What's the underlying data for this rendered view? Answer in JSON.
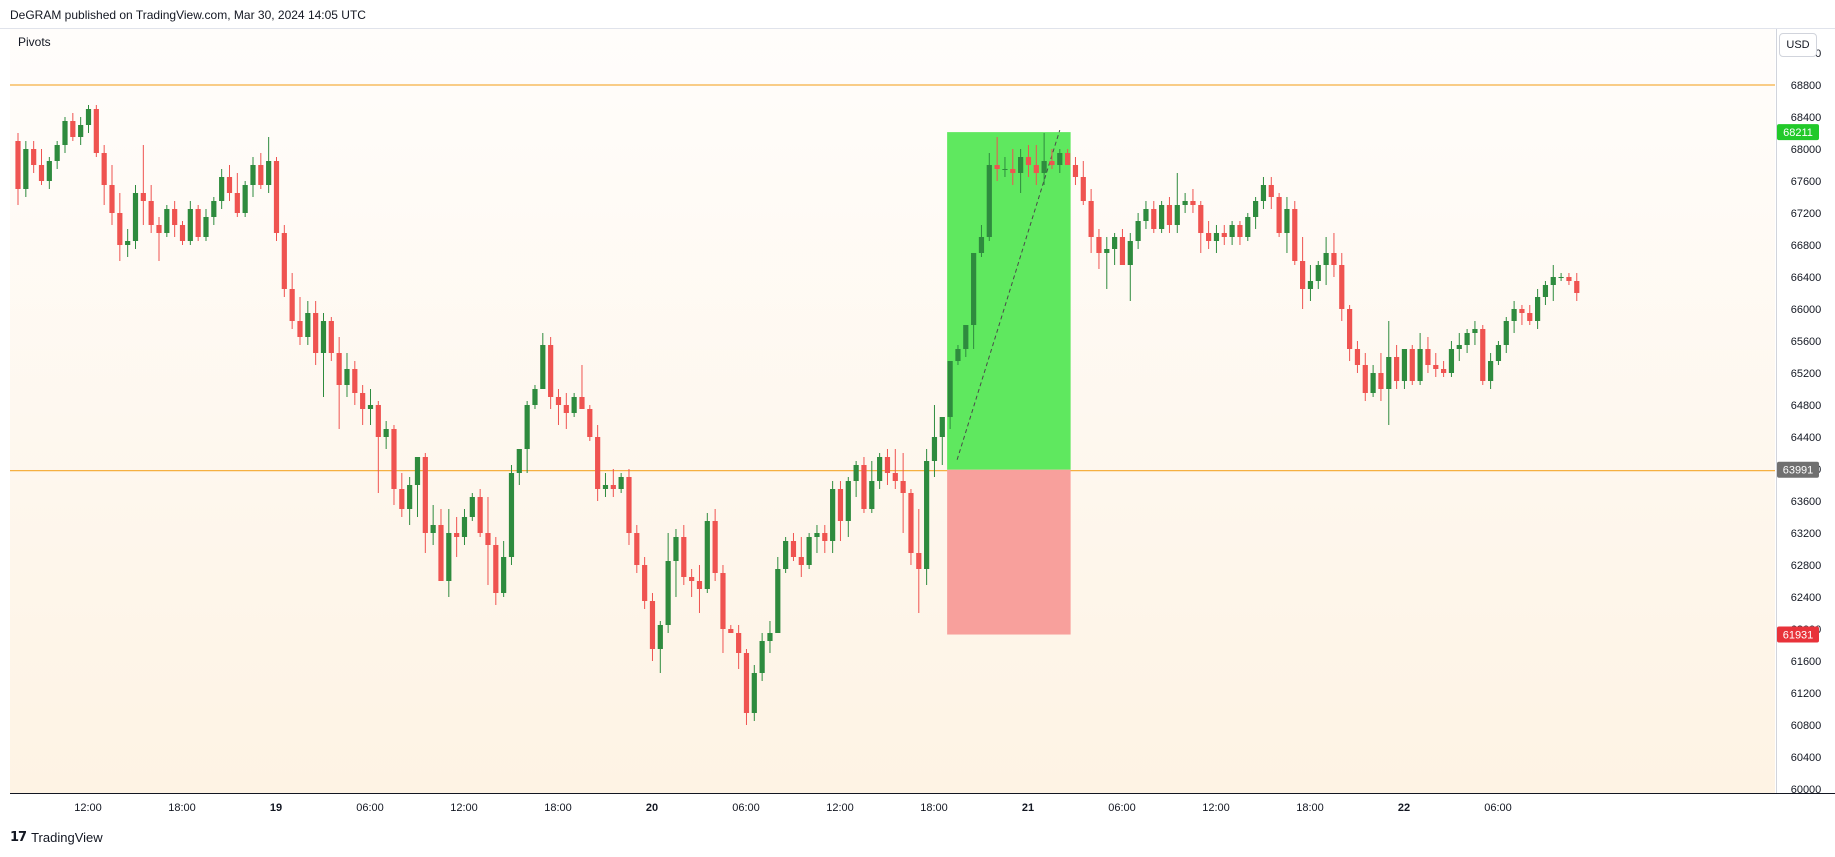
{
  "header": {
    "publish_note": "DeGRAM published on TradingView.com, Mar 30, 2024 14:05 UTC"
  },
  "indicator_label": "Pivots",
  "currency_button": "USD",
  "footer": {
    "brand_logo": "17",
    "brand_name": "TradingView"
  },
  "colors": {
    "up": "#2e8b3e",
    "down": "#ef5350",
    "pivot_line": "#f5b041",
    "profit_zone": "#5fe85f",
    "loss_zone": "#f8a09c",
    "target_tag": "#22c92a",
    "entry_tag": "#707070",
    "stop_tag": "#e8323a"
  },
  "chart_data": {
    "type": "candlestick",
    "symbol_currency": "USD",
    "y_axis": {
      "range": [
        59950,
        69500
      ],
      "ticks": [
        60000,
        60400,
        60800,
        61200,
        61600,
        62000,
        62400,
        62800,
        63200,
        63600,
        64000,
        64400,
        64800,
        65200,
        65600,
        66000,
        66400,
        66800,
        67200,
        67600,
        68000,
        68400,
        68800,
        69200
      ]
    },
    "x_axis": {
      "ticks": [
        {
          "label": "12:00",
          "x": 74,
          "bold": false
        },
        {
          "label": "18:00",
          "x": 168,
          "bold": false
        },
        {
          "label": "19",
          "x": 262,
          "bold": true
        },
        {
          "label": "06:00",
          "x": 356,
          "bold": false
        },
        {
          "label": "12:00",
          "x": 450,
          "bold": false
        },
        {
          "label": "18:00",
          "x": 544,
          "bold": false
        },
        {
          "label": "20",
          "x": 638,
          "bold": true
        },
        {
          "label": "06:00",
          "x": 732,
          "bold": false
        },
        {
          "label": "12:00",
          "x": 826,
          "bold": false
        },
        {
          "label": "18:00",
          "x": 920,
          "bold": false
        },
        {
          "label": "21",
          "x": 1014,
          "bold": true
        },
        {
          "label": "06:00",
          "x": 1108,
          "bold": false
        },
        {
          "label": "12:00",
          "x": 1202,
          "bold": false
        },
        {
          "label": "18:00",
          "x": 1296,
          "bold": false
        },
        {
          "label": "22",
          "x": 1390,
          "bold": true
        },
        {
          "label": "06:00",
          "x": 1484,
          "bold": false
        }
      ]
    },
    "horizontal_levels": [
      {
        "name": "upper-pivot",
        "price": 68800
      },
      {
        "name": "lower-pivot",
        "price": 63980
      }
    ],
    "position": {
      "type": "long",
      "entry": 63991,
      "target": 68211,
      "stop": 61931,
      "target_label": "68211",
      "entry_label": "63991",
      "stop_label": "61931"
    },
    "candles": [
      [
        68100,
        68200,
        67300,
        67500
      ],
      [
        67500,
        68100,
        67400,
        68000
      ],
      [
        68000,
        68100,
        67700,
        67800
      ],
      [
        67800,
        68000,
        67550,
        67600
      ],
      [
        67600,
        67900,
        67500,
        67850
      ],
      [
        67850,
        68100,
        67750,
        68050
      ],
      [
        68050,
        68400,
        67950,
        68350
      ],
      [
        68350,
        68450,
        68100,
        68150
      ],
      [
        68150,
        68400,
        68050,
        68300
      ],
      [
        68300,
        68550,
        68200,
        68500
      ],
      [
        68500,
        68550,
        67900,
        67950
      ],
      [
        67950,
        68050,
        67300,
        67550
      ],
      [
        67550,
        67800,
        67050,
        67200
      ],
      [
        67200,
        67450,
        66600,
        66800
      ],
      [
        66800,
        67000,
        66650,
        66850
      ],
      [
        66850,
        67550,
        66750,
        67450
      ],
      [
        67450,
        68050,
        67050,
        67350
      ],
      [
        67350,
        67550,
        66950,
        67050
      ],
      [
        67050,
        67150,
        66600,
        66950
      ],
      [
        66950,
        67300,
        66900,
        67250
      ],
      [
        67250,
        67350,
        66900,
        67050
      ],
      [
        67050,
        67100,
        66800,
        66850
      ],
      [
        66850,
        67350,
        66800,
        67250
      ],
      [
        67250,
        67300,
        66850,
        66900
      ],
      [
        66900,
        67250,
        66850,
        67150
      ],
      [
        67150,
        67400,
        67050,
        67350
      ],
      [
        67350,
        67750,
        67250,
        67650
      ],
      [
        67650,
        67800,
        67350,
        67450
      ],
      [
        67450,
        67700,
        67150,
        67200
      ],
      [
        67200,
        67600,
        67150,
        67550
      ],
      [
        67550,
        67900,
        67400,
        67800
      ],
      [
        67800,
        67950,
        67500,
        67550
      ],
      [
        67550,
        68150,
        67450,
        67850
      ],
      [
        67850,
        67900,
        66850,
        66950
      ],
      [
        66950,
        67050,
        66150,
        66250
      ],
      [
        66250,
        66450,
        65750,
        65850
      ],
      [
        65850,
        66150,
        65550,
        65650
      ],
      [
        65650,
        66100,
        65550,
        65950
      ],
      [
        65950,
        66100,
        65300,
        65450
      ],
      [
        65450,
        65950,
        64900,
        65850
      ],
      [
        65850,
        65900,
        65350,
        65450
      ],
      [
        65450,
        65650,
        64500,
        65050
      ],
      [
        65050,
        65450,
        64900,
        65250
      ],
      [
        65250,
        65350,
        64800,
        64950
      ],
      [
        64950,
        65050,
        64550,
        64750
      ],
      [
        64750,
        65000,
        64550,
        64800
      ],
      [
        64800,
        64850,
        63700,
        64400
      ],
      [
        64400,
        64600,
        64250,
        64500
      ],
      [
        64500,
        64550,
        63550,
        63750
      ],
      [
        63750,
        63950,
        63400,
        63500
      ],
      [
        63500,
        63900,
        63300,
        63800
      ],
      [
        63800,
        64150,
        63400,
        64150
      ],
      [
        64150,
        64200,
        62950,
        63200
      ],
      [
        63200,
        63550,
        63050,
        63300
      ],
      [
        63300,
        63500,
        62650,
        62600
      ],
      [
        62600,
        63500,
        62400,
        63200
      ],
      [
        63200,
        63400,
        62900,
        63150
      ],
      [
        63150,
        63500,
        63050,
        63400
      ],
      [
        63400,
        63700,
        63350,
        63650
      ],
      [
        63650,
        63750,
        63150,
        63200
      ],
      [
        63200,
        63650,
        62550,
        63050
      ],
      [
        63050,
        63150,
        62300,
        62450
      ],
      [
        62450,
        63100,
        62400,
        62900
      ],
      [
        62900,
        64050,
        62800,
        63950
      ],
      [
        63950,
        64250,
        63800,
        64250
      ],
      [
        64250,
        64850,
        63950,
        64800
      ],
      [
        64800,
        65050,
        64750,
        65000
      ],
      [
        65000,
        65700,
        65000,
        65550
      ],
      [
        65550,
        65650,
        64750,
        64900
      ],
      [
        64900,
        65000,
        64550,
        64800
      ],
      [
        64800,
        64950,
        64500,
        64700
      ],
      [
        64700,
        64950,
        64650,
        64900
      ],
      [
        64900,
        65300,
        64750,
        64750
      ],
      [
        64750,
        64800,
        64350,
        64400
      ],
      [
        64400,
        64550,
        63600,
        63750
      ],
      [
        63750,
        63950,
        63650,
        63800
      ],
      [
        63800,
        64000,
        63650,
        63750
      ],
      [
        63750,
        63950,
        63700,
        63900
      ],
      [
        63900,
        64000,
        63050,
        63200
      ],
      [
        63200,
        63300,
        62700,
        62800
      ],
      [
        62800,
        62900,
        62250,
        62350
      ],
      [
        62350,
        62450,
        61600,
        61750
      ],
      [
        61750,
        62100,
        61450,
        62050
      ],
      [
        62050,
        63200,
        61950,
        62850
      ],
      [
        62850,
        63250,
        62400,
        63150
      ],
      [
        63150,
        63300,
        62550,
        62650
      ],
      [
        62650,
        62750,
        62400,
        62600
      ],
      [
        62600,
        62800,
        62200,
        62500
      ],
      [
        62500,
        63450,
        62450,
        63350
      ],
      [
        63350,
        63500,
        62600,
        62700
      ],
      [
        62700,
        62800,
        61700,
        62000
      ],
      [
        62000,
        62050,
        61950,
        61950
      ],
      [
        61950,
        62050,
        61500,
        61700
      ],
      [
        61700,
        61750,
        60800,
        60950
      ],
      [
        60950,
        61550,
        60850,
        61450
      ],
      [
        61450,
        61950,
        61350,
        61850
      ],
      [
        61850,
        62100,
        61700,
        61950
      ],
      [
        61950,
        62900,
        61950,
        62750
      ],
      [
        62750,
        63150,
        62700,
        63100
      ],
      [
        63100,
        63200,
        62850,
        62900
      ],
      [
        62900,
        63150,
        62650,
        62800
      ],
      [
        62800,
        63200,
        62750,
        63150
      ],
      [
        63150,
        63300,
        62950,
        63200
      ],
      [
        63200,
        63300,
        62950,
        63100
      ],
      [
        63100,
        63850,
        62950,
        63750
      ],
      [
        63750,
        63850,
        63100,
        63350
      ],
      [
        63350,
        63900,
        63150,
        63850
      ],
      [
        63850,
        64100,
        63650,
        64050
      ],
      [
        64050,
        64150,
        63450,
        63500
      ],
      [
        63500,
        64100,
        63450,
        63850
      ],
      [
        63850,
        64200,
        63750,
        64150
      ],
      [
        64150,
        64250,
        63800,
        63950
      ],
      [
        63950,
        64250,
        63750,
        63850
      ],
      [
        63850,
        64200,
        63200,
        63700
      ],
      [
        63700,
        63750,
        62800,
        62950
      ],
      [
        62950,
        63500,
        62200,
        62750
      ],
      [
        62750,
        64250,
        62550,
        64100
      ],
      [
        64100,
        64800,
        63900,
        64400
      ],
      [
        64400,
        64600,
        64050,
        64650
      ],
      [
        64650,
        65350,
        64500,
        65350
      ],
      [
        65350,
        65550,
        65300,
        65500
      ],
      [
        65500,
        65800,
        65400,
        65800
      ],
      [
        65800,
        66700,
        65500,
        66700
      ],
      [
        66700,
        67050,
        66650,
        66900
      ],
      [
        66900,
        67950,
        66850,
        67800
      ],
      [
        67800,
        68150,
        67600,
        67750
      ],
      [
        67750,
        67900,
        67650,
        67750
      ],
      [
        67750,
        68000,
        67550,
        67700
      ],
      [
        67700,
        68000,
        67450,
        67900
      ],
      [
        67900,
        68050,
        67650,
        67800
      ],
      [
        67800,
        68050,
        67550,
        67700
      ],
      [
        67700,
        68200,
        67550,
        67850
      ],
      [
        67850,
        68000,
        67750,
        67800
      ],
      [
        67800,
        68000,
        67700,
        67950
      ],
      [
        67950,
        68000,
        67800,
        67800
      ],
      [
        67800,
        67900,
        67550,
        67650
      ],
      [
        67650,
        67850,
        67300,
        67350
      ],
      [
        67350,
        67500,
        66700,
        66900
      ],
      [
        66900,
        67000,
        66500,
        66700
      ],
      [
        66700,
        66900,
        66250,
        66750
      ],
      [
        66750,
        66950,
        66550,
        66900
      ],
      [
        66900,
        67000,
        66550,
        66550
      ],
      [
        66550,
        66950,
        66100,
        66850
      ],
      [
        66850,
        67200,
        66750,
        67100
      ],
      [
        67100,
        67350,
        67000,
        67250
      ],
      [
        67250,
        67350,
        66950,
        67000
      ],
      [
        67000,
        67350,
        66950,
        67300
      ],
      [
        67300,
        67400,
        66950,
        67050
      ],
      [
        67050,
        67700,
        66950,
        67300
      ],
      [
        67300,
        67450,
        67200,
        67350
      ],
      [
        67350,
        67500,
        67200,
        67300
      ],
      [
        67300,
        67350,
        66700,
        66950
      ],
      [
        66950,
        67100,
        66750,
        66850
      ],
      [
        66850,
        67050,
        66700,
        66950
      ],
      [
        66950,
        67050,
        66800,
        66900
      ],
      [
        66900,
        67100,
        66800,
        67050
      ],
      [
        67050,
        67100,
        66800,
        66900
      ],
      [
        66900,
        67200,
        66850,
        67150
      ],
      [
        67150,
        67400,
        67000,
        67350
      ],
      [
        67350,
        67650,
        67250,
        67550
      ],
      [
        67550,
        67650,
        67250,
        67400
      ],
      [
        67400,
        67450,
        66900,
        66950
      ],
      [
        66950,
        67400,
        66700,
        67250
      ],
      [
        67250,
        67350,
        66550,
        66600
      ],
      [
        66600,
        66900,
        66000,
        66250
      ],
      [
        66250,
        66550,
        66100,
        66350
      ],
      [
        66350,
        66600,
        66250,
        66550
      ],
      [
        66550,
        66900,
        66300,
        66700
      ],
      [
        66700,
        66950,
        66400,
        66550
      ],
      [
        66550,
        66700,
        65850,
        66000
      ],
      [
        66000,
        66050,
        65350,
        65500
      ],
      [
        65500,
        65600,
        65200,
        65300
      ],
      [
        65300,
        65450,
        64850,
        64950
      ],
      [
        64950,
        65300,
        64900,
        65200
      ],
      [
        65200,
        65450,
        64850,
        65000
      ],
      [
        65000,
        65850,
        64550,
        65400
      ],
      [
        65400,
        65550,
        65000,
        65100
      ],
      [
        65100,
        65500,
        65000,
        65500
      ],
      [
        65500,
        65550,
        65050,
        65100
      ],
      [
        65100,
        65700,
        65050,
        65500
      ],
      [
        65500,
        65650,
        65200,
        65300
      ],
      [
        65300,
        65450,
        65150,
        65250
      ],
      [
        65250,
        65350,
        65150,
        65200
      ],
      [
        65200,
        65600,
        65150,
        65500
      ],
      [
        65500,
        65700,
        65350,
        65550
      ],
      [
        65550,
        65750,
        65450,
        65700
      ],
      [
        65700,
        65850,
        65550,
        65750
      ],
      [
        65750,
        65800,
        65050,
        65100
      ],
      [
        65100,
        65450,
        65000,
        65350
      ],
      [
        65350,
        65600,
        65300,
        65550
      ],
      [
        65550,
        65900,
        65450,
        65850
      ],
      [
        65850,
        66100,
        65700,
        66000
      ],
      [
        66000,
        66050,
        65800,
        65950
      ],
      [
        65950,
        66050,
        65800,
        65850
      ],
      [
        65850,
        66250,
        65750,
        66150
      ],
      [
        66150,
        66350,
        66050,
        66300
      ],
      [
        66300,
        66550,
        66100,
        66400
      ],
      [
        66400,
        66450,
        66350,
        66400
      ],
      [
        66400,
        66450,
        66300,
        66350
      ],
      [
        66350,
        66450,
        66100,
        66200
      ]
    ]
  }
}
